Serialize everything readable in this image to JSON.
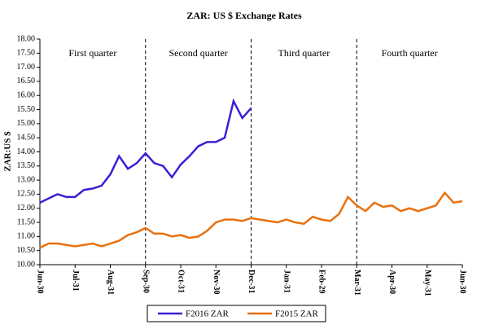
{
  "chart_data": {
    "type": "line",
    "title": "ZAR: US $ Exchange Rates",
    "y_label": "ZAR:US $",
    "categories": [
      "Jun-30",
      null,
      null,
      null,
      "Jul-31",
      null,
      null,
      null,
      "Aug-31",
      null,
      null,
      null,
      "Sep-30",
      null,
      null,
      null,
      "Oct-31",
      null,
      null,
      null,
      "Nov-30",
      null,
      null,
      null,
      "Dec-31",
      null,
      null,
      null,
      "Jan-31",
      null,
      null,
      null,
      "Feb-29",
      null,
      null,
      null,
      "Mar-31",
      null,
      null,
      null,
      "Apr-30",
      null,
      null,
      null,
      "May-31",
      null,
      null,
      null,
      "Jun-30"
    ],
    "series": [
      {
        "name": "F2016 ZAR",
        "color": "#3b1fd6",
        "values": [
          12.2,
          12.35,
          12.5,
          12.4,
          12.4,
          12.65,
          12.7,
          12.8,
          13.2,
          13.85,
          13.4,
          13.6,
          13.95,
          13.6,
          13.5,
          13.1,
          13.55,
          13.85,
          14.2,
          14.35,
          14.35,
          14.5,
          15.8,
          15.2,
          15.55,
          null,
          null,
          null,
          null,
          null,
          null,
          null,
          null,
          null,
          null,
          null,
          null,
          null,
          null,
          null,
          null,
          null,
          null,
          null,
          null,
          null,
          null,
          null,
          null
        ]
      },
      {
        "name": "F2015 ZAR",
        "color": "#e8710f",
        "values": [
          10.6,
          10.75,
          10.75,
          10.7,
          10.65,
          10.7,
          10.75,
          10.65,
          10.75,
          10.85,
          11.05,
          11.15,
          11.3,
          11.1,
          11.1,
          11.0,
          11.05,
          10.95,
          11.0,
          11.2,
          11.5,
          11.6,
          11.6,
          11.55,
          11.65,
          11.6,
          11.55,
          11.5,
          11.6,
          11.5,
          11.45,
          11.7,
          11.6,
          11.55,
          11.8,
          12.4,
          12.1,
          11.9,
          12.2,
          12.05,
          12.1,
          11.9,
          12.0,
          11.9,
          12.0,
          12.1,
          12.55,
          12.2,
          12.25
        ]
      }
    ],
    "quarters": [
      "First quarter",
      "Second quarter",
      "Third quarter",
      "Fourth quarter"
    ],
    "ylim": [
      10,
      18
    ],
    "yticks": [
      {
        "value": 10,
        "label": "10.00"
      },
      {
        "value": 10.5,
        "label": "10.50"
      },
      {
        "value": 11,
        "label": "11.00"
      },
      {
        "value": 11.5,
        "label": "11.50"
      },
      {
        "value": 12,
        "label": "12.00"
      },
      {
        "value": 12.5,
        "label": "12.50"
      },
      {
        "value": 13,
        "label": "13.00"
      },
      {
        "value": 13.5,
        "label": "13.50"
      },
      {
        "value": 14,
        "label": "14.00"
      },
      {
        "value": 14.5,
        "label": "14.50"
      },
      {
        "value": 15,
        "label": "15.00"
      },
      {
        "value": 15.5,
        "label": "15.50"
      },
      {
        "value": 16,
        "label": "16.00"
      },
      {
        "value": 16.5,
        "label": "16.50"
      },
      {
        "value": 17,
        "label": "17.00"
      },
      {
        "value": 17.5,
        "label": "17.50"
      },
      {
        "value": 18,
        "label": "18.00"
      }
    ],
    "grid": false
  }
}
